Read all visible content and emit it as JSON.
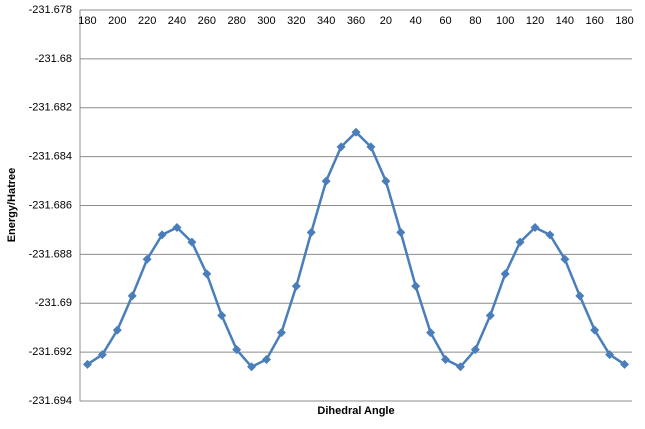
{
  "chart_data": {
    "type": "line",
    "x_label": "Dihedral Angle",
    "y_label": "Energy/Hatree",
    "categories": [
      "180",
      null,
      "200",
      null,
      "220",
      null,
      "240",
      null,
      "260",
      null,
      "280",
      null,
      "300",
      null,
      "320",
      null,
      "340",
      null,
      "360",
      null,
      "20",
      null,
      "40",
      null,
      "60",
      null,
      "80",
      null,
      "100",
      null,
      "120",
      null,
      "140",
      null,
      "160",
      null,
      "180"
    ],
    "series": [
      {
        "name": "Energy",
        "color": "#4a7ebb",
        "values": [
          -231.6925,
          -231.6921,
          -231.6911,
          -231.6897,
          -231.6882,
          -231.6872,
          -231.6869,
          -231.6875,
          -231.6888,
          -231.6905,
          -231.6919,
          -231.6926,
          -231.6923,
          -231.6912,
          -231.6893,
          -231.6871,
          -231.685,
          -231.6836,
          -231.683,
          -231.6836,
          -231.685,
          -231.6871,
          -231.6893,
          -231.6912,
          -231.6923,
          -231.6926,
          -231.6919,
          -231.6905,
          -231.6888,
          -231.6875,
          -231.6869,
          -231.6872,
          -231.6882,
          -231.6897,
          -231.6911,
          -231.6921,
          -231.6925
        ]
      }
    ],
    "ylim": [
      -231.694,
      -231.678
    ],
    "yticks": [
      -231.694,
      -231.692,
      -231.69,
      -231.688,
      -231.686,
      -231.684,
      -231.682,
      -231.68,
      -231.678
    ],
    "grid": true
  }
}
